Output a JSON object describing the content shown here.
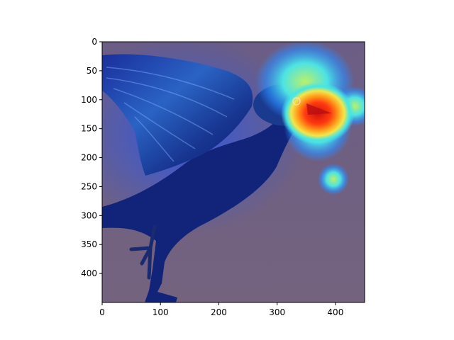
{
  "figure": {
    "image_description_icon": "bird-gradcam-heatmap-icon",
    "colors": {
      "background": "#ffffff",
      "overlay_base": "#6e5f86",
      "bird_dark": "#0b1d6e",
      "bird_mid": "#14339a",
      "heat_cool": "#1f63ff",
      "heat_cyan": "#3fe3e8",
      "heat_yellow": "#f0e14a",
      "heat_orange": "#ff8a1a",
      "heat_red": "#e01a12",
      "axis": "#000000"
    },
    "x_axis": {
      "ticks": [
        "0",
        "100",
        "200",
        "300",
        "400"
      ],
      "range": [
        0,
        450
      ]
    },
    "y_axis": {
      "ticks": [
        "0",
        "50",
        "100",
        "150",
        "200",
        "250",
        "300",
        "350",
        "400"
      ],
      "range": [
        0,
        450
      ]
    }
  }
}
